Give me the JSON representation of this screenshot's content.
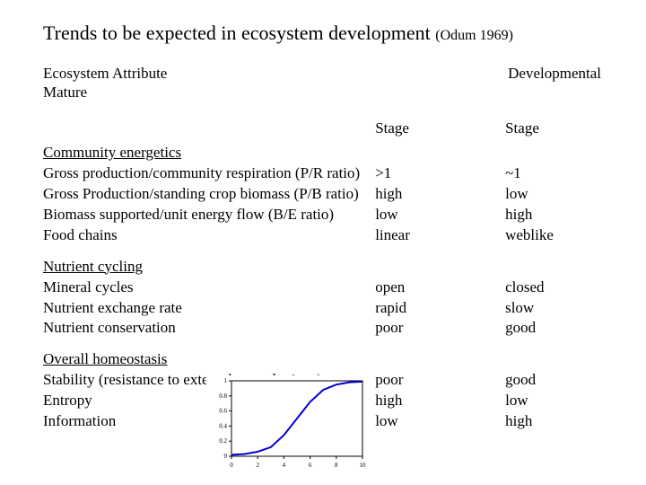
{
  "title": {
    "main": "Trends to be expected in ecosystem development",
    "cite": "(Odum 1969)"
  },
  "headers": {
    "attribute": "Ecosystem Attribute",
    "developmental": "Developmental",
    "mature": "Mature",
    "stage": "Stage"
  },
  "sections": [
    {
      "title": "Community energetics",
      "rows": [
        {
          "label": "Gross production/community respiration (P/R ratio)",
          "dev": ">1",
          "mat": "~1"
        },
        {
          "label": "Gross Production/standing crop biomass (P/B ratio)",
          "dev": "high",
          "mat": "low"
        },
        {
          "label": "Biomass supported/unit energy flow (B/E ratio)",
          "dev": "low",
          "mat": "high"
        },
        {
          "label": "Food chains",
          "dev": "linear",
          "mat": "weblike"
        }
      ]
    },
    {
      "title": "Nutrient cycling",
      "rows": [
        {
          "label": "Mineral cycles",
          "dev": "open",
          "mat": "closed"
        },
        {
          "label": "Nutrient exchange rate",
          "dev": "rapid",
          "mat": "slow"
        },
        {
          "label": "Nutrient conservation",
          "dev": "poor",
          "mat": "good"
        }
      ]
    },
    {
      "title": "Overall homeostasis",
      "rows": [
        {
          "label": "Stability (resistance to external perturbations)",
          "dev": "poor",
          "mat": "good"
        },
        {
          "label": "Entropy",
          "dev": "high",
          "mat": "low"
        },
        {
          "label": "Information",
          "dev": "low",
          "mat": "high"
        }
      ]
    }
  ],
  "chart": {
    "type": "line",
    "background_color": "#ffffff",
    "border_color": "#000000",
    "axis_color": "#000000",
    "curve_color": "#0000cc",
    "curve_width": 2,
    "xlim": [
      0,
      10
    ],
    "ylim": [
      0,
      1
    ],
    "xticks": [
      0,
      2,
      4,
      6,
      8,
      10
    ],
    "yticks": [
      0,
      0.2,
      0.4,
      0.6,
      0.8,
      1
    ],
    "points": [
      {
        "x": 0,
        "y": 0.02
      },
      {
        "x": 1,
        "y": 0.03
      },
      {
        "x": 2,
        "y": 0.06
      },
      {
        "x": 3,
        "y": 0.12
      },
      {
        "x": 4,
        "y": 0.28
      },
      {
        "x": 5,
        "y": 0.5
      },
      {
        "x": 6,
        "y": 0.72
      },
      {
        "x": 7,
        "y": 0.88
      },
      {
        "x": 8,
        "y": 0.95
      },
      {
        "x": 9,
        "y": 0.98
      },
      {
        "x": 10,
        "y": 0.99
      }
    ]
  }
}
